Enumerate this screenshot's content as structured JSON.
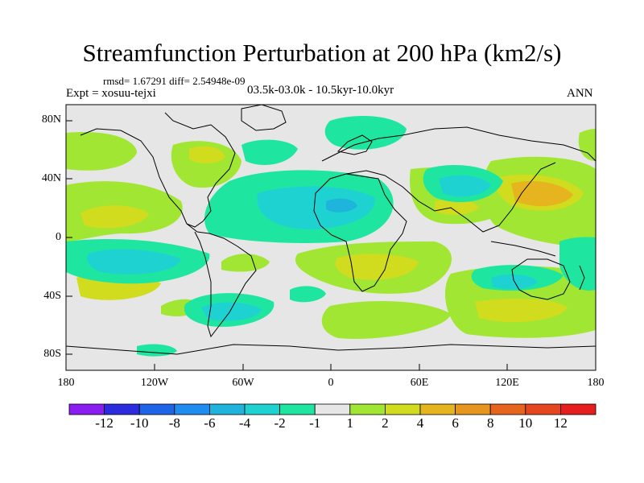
{
  "title": "Streamfunction Perturbation at 200 hPa (km2/s)",
  "stats": "rmsd= 1.67291 diff= 2.54948e-09",
  "expt": "Expt = xosuu-tejxi",
  "period": "03.5k-03.0k - 10.5kyr-10.0kyr",
  "season": "ANN",
  "lat_labels": [
    "80N",
    "40N",
    "0",
    "40S",
    "80S"
  ],
  "lon_labels": [
    "180",
    "120W",
    "60W",
    "0",
    "60E",
    "120E",
    "180"
  ],
  "colorbar": {
    "labels": [
      "-12",
      "-10",
      "-8",
      "-6",
      "-4",
      "-2",
      "-1",
      "1",
      "2",
      "4",
      "6",
      "8",
      "10",
      "12"
    ],
    "colors": [
      "#8a1ef0",
      "#2c2cde",
      "#1e64e6",
      "#1e8cf0",
      "#1eb4dc",
      "#1ed2d2",
      "#1ee6a0",
      "#e6e6e6",
      "#a0e632",
      "#d2dc1e",
      "#e6b41e",
      "#e6961e",
      "#e6641e",
      "#e6461e",
      "#e61e1e"
    ]
  }
}
